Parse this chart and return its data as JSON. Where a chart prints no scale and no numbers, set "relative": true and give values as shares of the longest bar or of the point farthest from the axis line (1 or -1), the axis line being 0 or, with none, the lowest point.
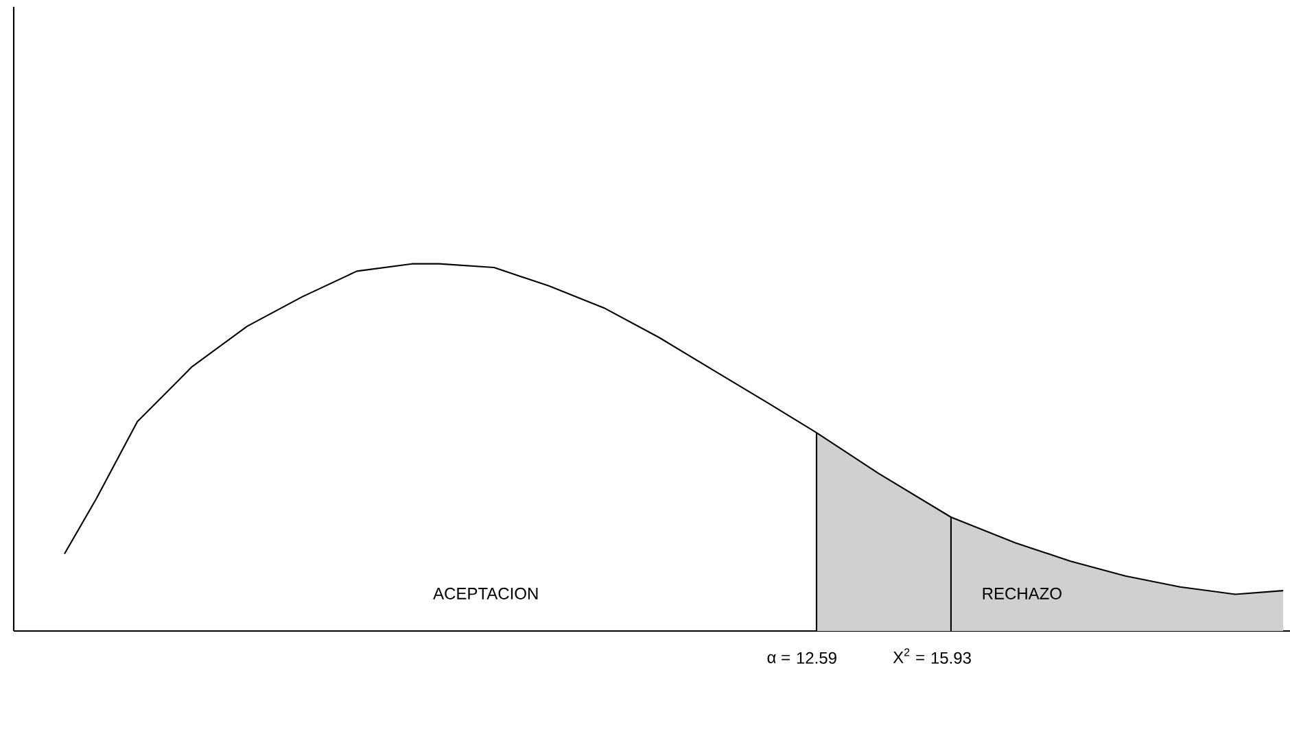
{
  "chart_data": {
    "type": "line",
    "relative": true,
    "marker": "none",
    "grid": false,
    "tick_labels": "x",
    "xlim": [
      -7.35,
      24.35
    ],
    "xticks": [
      12.59,
      15.93
    ],
    "series": [
      {
        "type": "area",
        "color": "#d0d0d0",
        "x": [
          12.59,
          14.12,
          15.93,
          17.53,
          18.9,
          20.26,
          21.62,
          22.99,
          24.18
        ],
        "values": [
          0.54,
          0.43,
          0.31,
          0.24,
          0.19,
          0.15,
          0.12,
          0.1,
          0.11
        ]
      },
      {
        "color": "#000000",
        "x": [
          -6.09,
          -5.3,
          -4.28,
          -2.92,
          -1.55,
          -0.19,
          1.17,
          2.54,
          3.22,
          4.58,
          5.94,
          7.31,
          8.67,
          10.03,
          11.4,
          12.59,
          14.12,
          15.93,
          17.53,
          18.9,
          20.26,
          21.62,
          22.99,
          24.18
        ],
        "values": [
          0.21,
          0.36,
          0.57,
          0.72,
          0.83,
          0.91,
          0.98,
          1.0,
          1.0,
          0.99,
          0.94,
          0.88,
          0.8,
          0.71,
          0.62,
          0.54,
          0.43,
          0.31,
          0.24,
          0.19,
          0.15,
          0.12,
          0.1,
          0.11
        ]
      }
    ],
    "ref_lines": [
      {
        "axis": "x",
        "value": 12.59,
        "label": "α ="
      },
      {
        "axis": "x",
        "value": 15.93,
        "label": "X$^{2}$ ="
      }
    ],
    "annotations": [
      "ACEPTACION",
      "RECHAZO"
    ]
  }
}
